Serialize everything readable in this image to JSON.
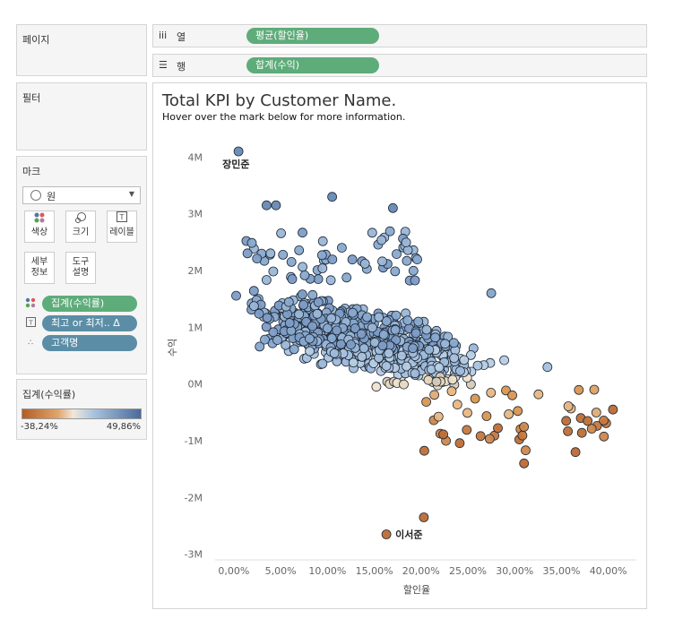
{
  "left_panel": {
    "pages_title": "페이지",
    "filters_title": "필터",
    "marks": {
      "title": "마크",
      "mark_type": "원",
      "buttons": [
        {
          "label": "색상",
          "icon": "color-dots-icon"
        },
        {
          "label": "크기",
          "icon": "size-icon"
        },
        {
          "label": "레이블",
          "icon": "label-icon"
        },
        {
          "label": "세부\n정보",
          "icon": ""
        },
        {
          "label": "도구\n설명",
          "icon": ""
        }
      ],
      "fields": [
        {
          "label": "집계(수익률)",
          "color": "#5eac7a",
          "icon": "color-dots-icon"
        },
        {
          "label": "최고 or 최저.. Δ",
          "color": "#5b8ea6",
          "icon": "label-icon"
        },
        {
          "label": "고객명",
          "color": "#5b8ea6",
          "icon": "detail-icon"
        }
      ]
    },
    "legend": {
      "title": "집계(수익률)",
      "min_label": "-38,24%",
      "max_label": "49,86%",
      "colors": [
        "#b35e24",
        "#e0a56b",
        "#f1e7d9",
        "#a9c4df",
        "#4a6a9a"
      ]
    }
  },
  "shelves": {
    "columns": {
      "icon": "iii",
      "label": "열",
      "pill": "평균(할인율)"
    },
    "rows": {
      "icon": "☰",
      "label": "행",
      "pill": "합계(수익)"
    }
  },
  "sheet": {
    "title": "Total KPI by Customer Name.",
    "subtitle": "Hover over the mark below for more information."
  },
  "chart_data": {
    "type": "scatter",
    "xlabel": "할인율",
    "ylabel": "수익",
    "xlim": [
      -0.02,
      0.43
    ],
    "ylim": [
      -3100000,
      4400000
    ],
    "x_ticks": [
      "0,00%",
      "5,00%",
      "10,00%",
      "15,00%",
      "20,00%",
      "25,00%",
      "30,00%",
      "35,00%",
      "40,00%"
    ],
    "y_ticks": [
      "4M",
      "3M",
      "2M",
      "1M",
      "0M",
      "-1M",
      "-2M",
      "-3M"
    ],
    "x_tick_values": [
      0,
      0.05,
      0.1,
      0.15,
      0.2,
      0.25,
      0.3,
      0.35,
      0.4
    ],
    "y_tick_values": [
      4000000,
      3000000,
      2000000,
      1000000,
      0,
      -1000000,
      -2000000,
      -3000000
    ],
    "annotations": [
      {
        "text": "장민준",
        "x": 0.005,
        "y": 4100000
      },
      {
        "text": "이서준",
        "x": 0.163,
        "y": -2650000
      }
    ],
    "highlight_points": [
      {
        "x": 0.005,
        "y": 4100000,
        "color": "#6f8fb8"
      },
      {
        "x": 0.163,
        "y": -2650000,
        "color": "#c0723e"
      },
      {
        "x": 0.203,
        "y": -2350000,
        "color": "#c0723e"
      },
      {
        "x": 0.105,
        "y": 3300000,
        "color": "#6f8fb8"
      },
      {
        "x": 0.035,
        "y": 3150000,
        "color": "#6f8fb8"
      },
      {
        "x": 0.045,
        "y": 3150000,
        "color": "#6f8fb8"
      },
      {
        "x": 0.17,
        "y": 3100000,
        "color": "#6f8fb8"
      },
      {
        "x": 0.275,
        "y": 1600000,
        "color": "#8aaacc"
      },
      {
        "x": 0.405,
        "y": -450000,
        "color": "#c0723e"
      },
      {
        "x": 0.31,
        "y": -1400000,
        "color": "#c0723e"
      },
      {
        "x": 0.365,
        "y": -1200000,
        "color": "#c0723e"
      },
      {
        "x": 0.385,
        "y": -100000,
        "color": "#e0a56b"
      },
      {
        "x": 0.335,
        "y": 300000,
        "color": "#a9c4df"
      },
      {
        "x": 0.355,
        "y": -650000,
        "color": "#c0723e"
      }
    ],
    "cloud_note": "Approx. 800 customer marks clustered between 0% and 30% discount, mostly 0M–2M profit, colored by profit ratio."
  }
}
